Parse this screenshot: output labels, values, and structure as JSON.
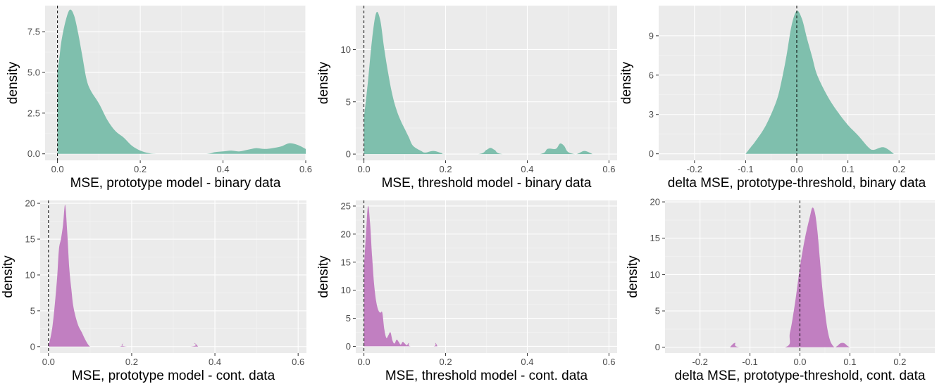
{
  "chart_data": [
    {
      "type": "area",
      "xlabel": "MSE, prototype model - binary data",
      "ylabel": "density",
      "fill": "#7fbfad",
      "xlim": [
        -0.03,
        0.6
      ],
      "ylim": [
        -0.4,
        9.1
      ],
      "xticks": [
        0.0,
        0.2,
        0.4,
        0.6
      ],
      "xtick_labels": [
        "0.0",
        "0.2",
        "0.4",
        "0.6"
      ],
      "yticks": [
        0,
        2.5,
        5,
        7.5
      ],
      "ytick_labels": [
        "0.0",
        "2.5",
        "5.0",
        "7.5"
      ],
      "vline_x": 0,
      "x": [
        0,
        0.005,
        0.01,
        0.02,
        0.03,
        0.04,
        0.05,
        0.06,
        0.07,
        0.08,
        0.1,
        0.12,
        0.14,
        0.16,
        0.18,
        0.2,
        0.22,
        0.24,
        0.3,
        0.36,
        0.38,
        0.4,
        0.42,
        0.44,
        0.46,
        0.48,
        0.5,
        0.52,
        0.54,
        0.56,
        0.58,
        0.6
      ],
      "y": [
        5.0,
        6.0,
        7.0,
        8.2,
        8.85,
        8.5,
        7.4,
        6.0,
        4.6,
        3.9,
        3.1,
        2.1,
        1.4,
        1.0,
        0.5,
        0.2,
        0.05,
        0.0,
        0.0,
        0.0,
        0.1,
        0.15,
        0.2,
        0.15,
        0.25,
        0.35,
        0.3,
        0.35,
        0.45,
        0.65,
        0.55,
        0.3
      ]
    },
    {
      "type": "area",
      "xlabel": "MSE, threshold model - binary data",
      "ylabel": "density",
      "fill": "#7fbfad",
      "xlim": [
        -0.02,
        0.62
      ],
      "ylim": [
        -0.6,
        14.2
      ],
      "xticks": [
        0.0,
        0.2,
        0.4,
        0.6
      ],
      "xtick_labels": [
        "0.0",
        "0.2",
        "0.4",
        "0.6"
      ],
      "yticks": [
        0,
        5,
        10
      ],
      "ytick_labels": [
        "0",
        "5",
        "10"
      ],
      "vline_x": 0,
      "x": [
        0,
        0.01,
        0.02,
        0.03,
        0.04,
        0.05,
        0.06,
        0.07,
        0.08,
        0.09,
        0.1,
        0.11,
        0.12,
        0.14,
        0.15,
        0.17,
        0.19,
        0.2,
        0.28,
        0.3,
        0.31,
        0.32,
        0.34,
        0.43,
        0.45,
        0.47,
        0.48,
        0.49,
        0.5,
        0.52,
        0.54,
        0.56
      ],
      "y": [
        3.5,
        7.0,
        11.0,
        13.5,
        12.8,
        10.0,
        7.6,
        5.6,
        4.2,
        3.2,
        2.4,
        1.6,
        0.8,
        0.3,
        0.15,
        0.3,
        0.1,
        0.0,
        0.0,
        0.4,
        0.6,
        0.4,
        0.0,
        0.0,
        0.5,
        0.5,
        1.0,
        0.8,
        0.2,
        0.0,
        0.3,
        0.0
      ]
    },
    {
      "type": "area",
      "xlabel": "delta MSE, prototype-threshold, binary data",
      "ylabel": "density",
      "fill": "#7fbfad",
      "xlim": [
        -0.27,
        0.27
      ],
      "ylim": [
        -0.5,
        11.3
      ],
      "xticks": [
        -0.2,
        -0.1,
        0.0,
        0.1,
        0.2
      ],
      "xtick_labels": [
        "-0.2",
        "-0.1",
        "0.0",
        "0.1",
        "0.2"
      ],
      "yticks": [
        0,
        3,
        6,
        9
      ],
      "ytick_labels": [
        "0",
        "3",
        "6",
        "9"
      ],
      "vline_x": 0,
      "x": [
        -0.1,
        -0.09,
        -0.08,
        -0.06,
        -0.04,
        -0.03,
        -0.02,
        -0.01,
        0.0,
        0.01,
        0.02,
        0.03,
        0.04,
        0.06,
        0.08,
        0.1,
        0.12,
        0.14,
        0.15,
        0.17,
        0.19
      ],
      "y": [
        0.0,
        0.5,
        1.0,
        2.2,
        4.0,
        5.5,
        7.5,
        9.8,
        10.9,
        10.3,
        8.8,
        7.4,
        6.0,
        4.4,
        3.2,
        2.2,
        1.4,
        0.5,
        0.3,
        0.5,
        0.0
      ]
    },
    {
      "type": "area",
      "xlabel": "MSE, prototype model - cont. data",
      "ylabel": "density",
      "fill": "#c17fc1",
      "xlim": [
        -0.02,
        0.62
      ],
      "ylim": [
        -0.9,
        20.4
      ],
      "xticks": [
        0.0,
        0.2,
        0.4,
        0.6
      ],
      "xtick_labels": [
        "0.0",
        "0.2",
        "0.4",
        "0.6"
      ],
      "yticks": [
        0,
        5,
        10,
        15,
        20
      ],
      "ytick_labels": [
        "0",
        "5",
        "10",
        "15",
        "20"
      ],
      "vline_x": 0,
      "x": [
        0.0,
        0.01,
        0.02,
        0.025,
        0.03,
        0.035,
        0.04,
        0.045,
        0.05,
        0.055,
        0.06,
        0.07,
        0.08,
        0.09,
        0.1,
        0.11,
        0.17,
        0.18,
        0.19,
        0.34,
        0.35,
        0.36
      ],
      "y": [
        0.0,
        3.0,
        9.0,
        13.5,
        15.0,
        17.0,
        19.8,
        16.0,
        11.0,
        8.0,
        5.5,
        3.2,
        2.0,
        0.8,
        0.0,
        0.0,
        0.0,
        0.5,
        0.0,
        0.0,
        0.5,
        0.0
      ]
    },
    {
      "type": "area",
      "xlabel": "MSE, threshold model - cont. data",
      "ylabel": "density",
      "fill": "#c17fc1",
      "xlim": [
        -0.02,
        0.62
      ],
      "ylim": [
        -1.2,
        26.0
      ],
      "xticks": [
        0.0,
        0.2,
        0.4,
        0.6
      ],
      "xtick_labels": [
        "0.0",
        "0.2",
        "0.4",
        "0.6"
      ],
      "yticks": [
        0,
        5,
        10,
        15,
        20,
        25
      ],
      "ytick_labels": [
        "0",
        "5",
        "10",
        "15",
        "20",
        "25"
      ],
      "vline_x": 0,
      "x": [
        0.0,
        0.005,
        0.01,
        0.015,
        0.02,
        0.025,
        0.03,
        0.035,
        0.04,
        0.045,
        0.05,
        0.055,
        0.06,
        0.065,
        0.07,
        0.075,
        0.08,
        0.085,
        0.09,
        0.095,
        0.1,
        0.105,
        0.11,
        0.115,
        0.17,
        0.175,
        0.18
      ],
      "y": [
        14.0,
        20.0,
        25.0,
        22.0,
        16.0,
        11.0,
        8.0,
        6.5,
        6.0,
        6.0,
        3.0,
        1.5,
        2.0,
        2.5,
        1.0,
        0.5,
        1.2,
        0.8,
        0.3,
        0.8,
        0.5,
        0.2,
        0.6,
        0.0,
        0.0,
        0.6,
        0.0
      ]
    },
    {
      "type": "area",
      "xlabel": "delta MSE, prototype-threshold, cont. data",
      "ylabel": "density",
      "fill": "#c17fc1",
      "xlim": [
        -0.27,
        0.27
      ],
      "ylim": [
        -0.8,
        20.2
      ],
      "xticks": [
        -0.2,
        -0.1,
        0.0,
        0.1,
        0.2
      ],
      "xtick_labels": [
        "-0.2",
        "-0.1",
        "0.0",
        "0.1",
        "0.2"
      ],
      "yticks": [
        0,
        5,
        10,
        15,
        20
      ],
      "ytick_labels": [
        "0",
        "5",
        "10",
        "15",
        "20"
      ],
      "vline_x": 0,
      "x": [
        -0.14,
        -0.13,
        -0.12,
        -0.03,
        -0.02,
        -0.01,
        0.0,
        0.01,
        0.02,
        0.025,
        0.03,
        0.035,
        0.04,
        0.045,
        0.05,
        0.055,
        0.06,
        0.065,
        0.07,
        0.075,
        0.08,
        0.085,
        0.09,
        0.095,
        0.1
      ],
      "y": [
        0.0,
        0.6,
        0.0,
        0.0,
        2.0,
        6.0,
        11.0,
        15.0,
        18.0,
        19.2,
        18.5,
        16.0,
        12.0,
        8.0,
        5.0,
        2.5,
        1.0,
        0.3,
        0.0,
        0.2,
        0.5,
        0.6,
        0.5,
        0.2,
        0.0
      ]
    }
  ]
}
